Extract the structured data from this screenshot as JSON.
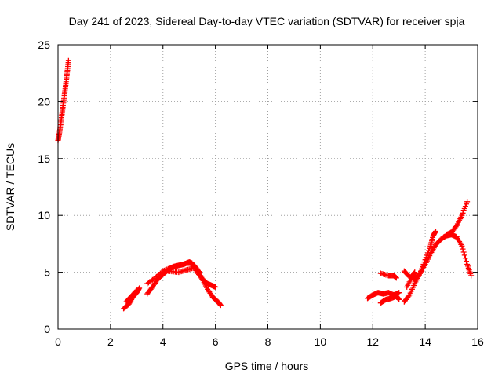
{
  "chart_data": {
    "type": "scatter",
    "title": "Day 241 of 2023, Sidereal Day-to-day VTEC variation (SDTVAR) for receiver spja",
    "xlabel": "GPS time / hours",
    "ylabel": "SDTVAR / TECUs",
    "xlim": [
      0,
      16
    ],
    "ylim": [
      0,
      25
    ],
    "xticks": [
      0,
      2,
      4,
      6,
      8,
      10,
      12,
      14,
      16
    ],
    "yticks": [
      0,
      5,
      10,
      15,
      20,
      25
    ],
    "xtick_labels": [
      "0",
      "2",
      "4",
      "6",
      "8",
      "10",
      "12",
      "14",
      "16"
    ],
    "ytick_labels": [
      "0",
      "5",
      "10",
      "15",
      "20",
      "25"
    ],
    "grid": true,
    "marker": "plus",
    "marker_color": "#ff0000",
    "series": [
      {
        "name": "arc-1",
        "points": [
          [
            0.0,
            16.6
          ],
          [
            0.05,
            17.2
          ],
          [
            0.1,
            18.0
          ],
          [
            0.15,
            18.9
          ],
          [
            0.2,
            19.8
          ],
          [
            0.25,
            20.7
          ],
          [
            0.3,
            21.6
          ],
          [
            0.35,
            22.6
          ],
          [
            0.4,
            23.6
          ]
        ]
      },
      {
        "name": "arc-2",
        "points": [
          [
            2.5,
            1.8
          ],
          [
            2.7,
            2.2
          ],
          [
            2.85,
            2.8
          ],
          [
            3.0,
            3.2
          ],
          [
            3.1,
            3.6
          ]
        ]
      },
      {
        "name": "arc-3",
        "points": [
          [
            2.6,
            2.4
          ],
          [
            2.8,
            2.9
          ],
          [
            3.0,
            3.4
          ]
        ]
      },
      {
        "name": "arc-4",
        "points": [
          [
            3.4,
            3.1
          ],
          [
            3.6,
            3.7
          ],
          [
            3.8,
            4.4
          ],
          [
            4.0,
            4.8
          ],
          [
            4.2,
            5.2
          ],
          [
            4.4,
            5.5
          ],
          [
            4.6,
            5.6
          ],
          [
            4.8,
            5.7
          ],
          [
            5.0,
            5.9
          ],
          [
            5.1,
            5.8
          ],
          [
            5.3,
            5.3
          ],
          [
            5.5,
            4.4
          ],
          [
            5.7,
            3.5
          ],
          [
            5.9,
            2.8
          ],
          [
            6.1,
            2.4
          ],
          [
            6.2,
            2.1
          ]
        ]
      },
      {
        "name": "arc-5",
        "points": [
          [
            3.4,
            4.0
          ],
          [
            3.7,
            4.5
          ],
          [
            4.0,
            5.1
          ],
          [
            4.3,
            5.4
          ],
          [
            4.6,
            5.6
          ],
          [
            4.9,
            5.8
          ],
          [
            5.1,
            5.8
          ],
          [
            5.3,
            5.0
          ],
          [
            5.5,
            4.4
          ],
          [
            5.7,
            4.0
          ],
          [
            5.9,
            3.8
          ],
          [
            6.0,
            3.7
          ]
        ]
      },
      {
        "name": "arc-6",
        "points": [
          [
            4.2,
            5.1
          ],
          [
            4.6,
            5.0
          ],
          [
            4.9,
            5.2
          ],
          [
            5.2,
            5.4
          ],
          [
            5.4,
            5.0
          ]
        ]
      },
      {
        "name": "arc-7",
        "points": [
          [
            11.8,
            2.7
          ],
          [
            12.0,
            3.0
          ],
          [
            12.2,
            3.2
          ],
          [
            12.4,
            3.1
          ],
          [
            12.6,
            3.2
          ],
          [
            12.8,
            3.0
          ],
          [
            13.0,
            3.2
          ]
        ]
      },
      {
        "name": "arc-8",
        "points": [
          [
            12.3,
            2.3
          ],
          [
            12.5,
            2.6
          ],
          [
            12.7,
            2.7
          ],
          [
            12.9,
            2.9
          ],
          [
            13.0,
            2.6
          ]
        ]
      },
      {
        "name": "arc-9",
        "points": [
          [
            12.3,
            4.9
          ],
          [
            12.6,
            4.7
          ],
          [
            12.8,
            4.7
          ],
          [
            12.9,
            4.5
          ]
        ]
      },
      {
        "name": "arc-10",
        "points": [
          [
            13.2,
            2.4
          ],
          [
            13.4,
            3.0
          ],
          [
            13.6,
            4.0
          ],
          [
            13.8,
            4.9
          ],
          [
            14.0,
            5.7
          ],
          [
            14.2,
            6.6
          ],
          [
            14.4,
            7.4
          ],
          [
            14.6,
            7.9
          ],
          [
            14.8,
            8.2
          ],
          [
            15.0,
            8.3
          ],
          [
            15.2,
            8.1
          ],
          [
            15.4,
            7.3
          ],
          [
            15.6,
            5.7
          ],
          [
            15.75,
            4.7
          ]
        ]
      },
      {
        "name": "arc-11",
        "points": [
          [
            13.2,
            5.1
          ],
          [
            13.4,
            4.6
          ],
          [
            13.6,
            4.4
          ],
          [
            13.8,
            4.9
          ],
          [
            14.0,
            6.1
          ],
          [
            14.2,
            7.3
          ],
          [
            14.3,
            8.2
          ],
          [
            14.4,
            8.6
          ]
        ]
      },
      {
        "name": "arc-12",
        "points": [
          [
            14.8,
            8.3
          ],
          [
            15.0,
            8.5
          ],
          [
            15.2,
            9.1
          ],
          [
            15.4,
            10.0
          ],
          [
            15.6,
            11.2
          ]
        ]
      },
      {
        "name": "arc-13",
        "points": [
          [
            13.3,
            3.7
          ],
          [
            13.5,
            4.6
          ],
          [
            13.6,
            5.0
          ]
        ]
      }
    ]
  }
}
